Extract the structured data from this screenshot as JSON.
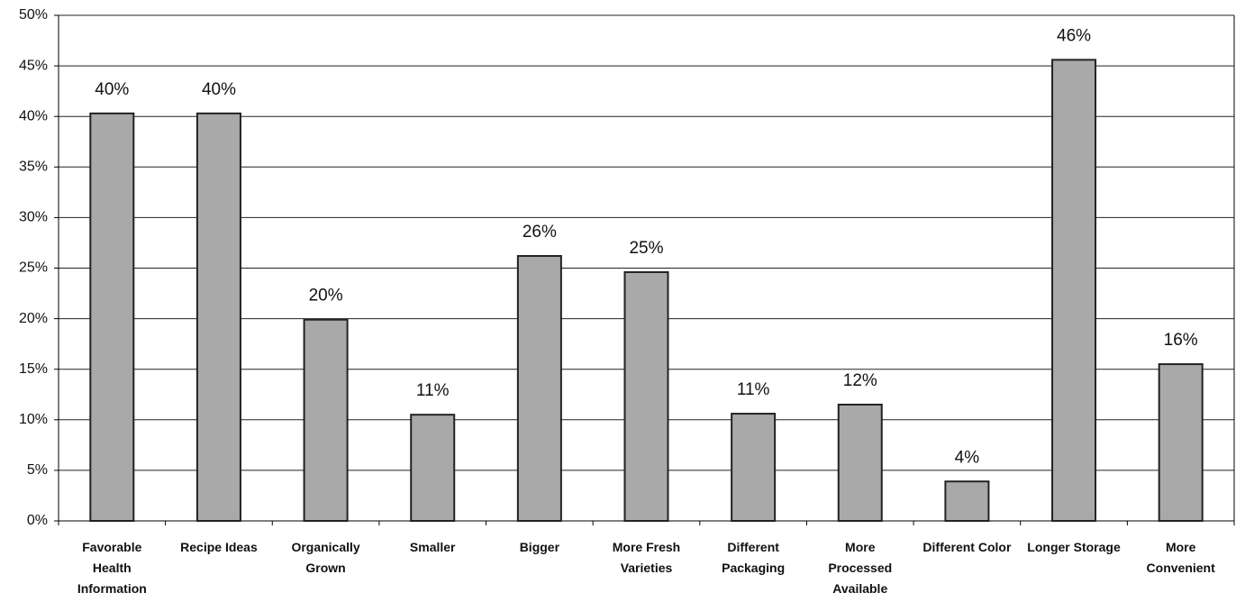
{
  "chart_data": {
    "type": "bar",
    "categories": [
      "Favorable Health Information",
      "Recipe Ideas",
      "Organically Grown",
      "Smaller",
      "Bigger",
      "More Fresh Varieties",
      "Different Packaging",
      "More Processed Available",
      "Different Color",
      "Longer Storage",
      "More Convenient"
    ],
    "values": [
      40.3,
      40.3,
      19.9,
      10.5,
      26.2,
      24.6,
      10.6,
      11.5,
      3.9,
      45.6,
      15.5
    ],
    "value_labels": [
      "40%",
      "40%",
      "20%",
      "11%",
      "26%",
      "25%",
      "11%",
      "12%",
      "4%",
      "46%",
      "16%"
    ],
    "color": "#a9a9a9",
    "ylim": [
      0,
      50
    ],
    "yticks": [
      {
        "value": 0,
        "label": "0%"
      },
      {
        "value": 5,
        "label": "5%"
      },
      {
        "value": 10,
        "label": "10%"
      },
      {
        "value": 15,
        "label": "15%"
      },
      {
        "value": 20,
        "label": "20%"
      },
      {
        "value": 25,
        "label": "25%"
      },
      {
        "value": 30,
        "label": "30%"
      },
      {
        "value": 35,
        "label": "35%"
      },
      {
        "value": 40,
        "label": "40%"
      },
      {
        "value": 45,
        "label": "45%"
      },
      {
        "value": 50,
        "label": "50%"
      }
    ],
    "grid": true
  }
}
